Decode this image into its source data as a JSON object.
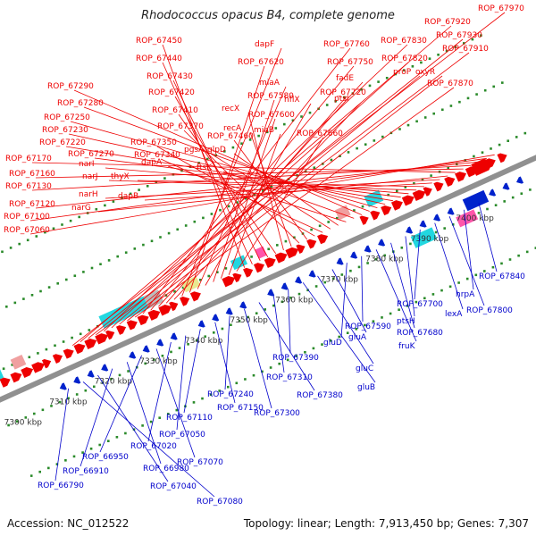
{
  "title": "Rhodococcus opacus B4, complete genome",
  "footer": {
    "accession": "Accession: NC_012522",
    "summary": "Topology: linear; Length: 7,913,450 bp; Genes: 7,307"
  },
  "colors": {
    "upper_label": "#ee0000",
    "lower_label": "#0000cc",
    "axis": "#909090",
    "ticks": "#2a8a2a",
    "forward_gene": "#ee0000",
    "reverse_gene": "#0022cc"
  },
  "scale": {
    "unit": "kbp",
    "labels": [
      "7300 kbp",
      "7310 kbp",
      "7320 kbp",
      "7330 kbp",
      "7340 kbp",
      "7350 kbp",
      "7360 kbp",
      "7370 kbp",
      "7380 kbp",
      "7390 kbp",
      "7400 kbp"
    ]
  },
  "upper_labels": [
    "ROP_67970",
    "ROP_67920",
    "ROP_67930",
    "ROP_67910",
    "ROP_67830",
    "ROP_67820",
    "proP",
    "oxyR",
    "ROP_67870",
    "ROP_67760",
    "ROP_67750",
    "fadE",
    "ROP_67720",
    "ptsI",
    "dapF",
    "ROP_67620",
    "miaA",
    "hflX",
    "ROP_67580",
    "ROP_67600",
    "miaB",
    "ROP_67660",
    "ROP_67450",
    "ROP_67440",
    "ROP_67430",
    "ROP_67420",
    "ROP_67410",
    "recX",
    "recA",
    "ROP_67370",
    "ROP_67460",
    "ROP_67350",
    "ROP_67340",
    "pgsA",
    "glpD",
    "dapA",
    "ftsK",
    "ROP_67290",
    "ROP_67280",
    "ROP_67250",
    "ROP_67230",
    "ROP_67220",
    "ROP_67270",
    "narI",
    "narJ",
    "thyX",
    "dapB",
    "narH",
    "narG",
    "ROP_67170",
    "ROP_67160",
    "ROP_67130",
    "ROP_67120",
    "ROP_67100",
    "ROP_67060"
  ],
  "lower_labels": [
    "ROP_67840",
    "hrpA",
    "ROP_67800",
    "lexA",
    "ROP_67700",
    "ptsH",
    "ROP_67680",
    "fruK",
    "ROP_67590",
    "gluD",
    "gluA",
    "gluC",
    "gluB",
    "ROP_67390",
    "ROP_67310",
    "ROP_67380",
    "ROP_67300",
    "ROP_67240",
    "ROP_67150",
    "ROP_67110",
    "ROP_67050",
    "ROP_67020",
    "ROP_67070",
    "ROP_66950",
    "ROP_66980",
    "ROP_66910",
    "ROP_67040",
    "ROP_67080",
    "ROP_66790"
  ]
}
